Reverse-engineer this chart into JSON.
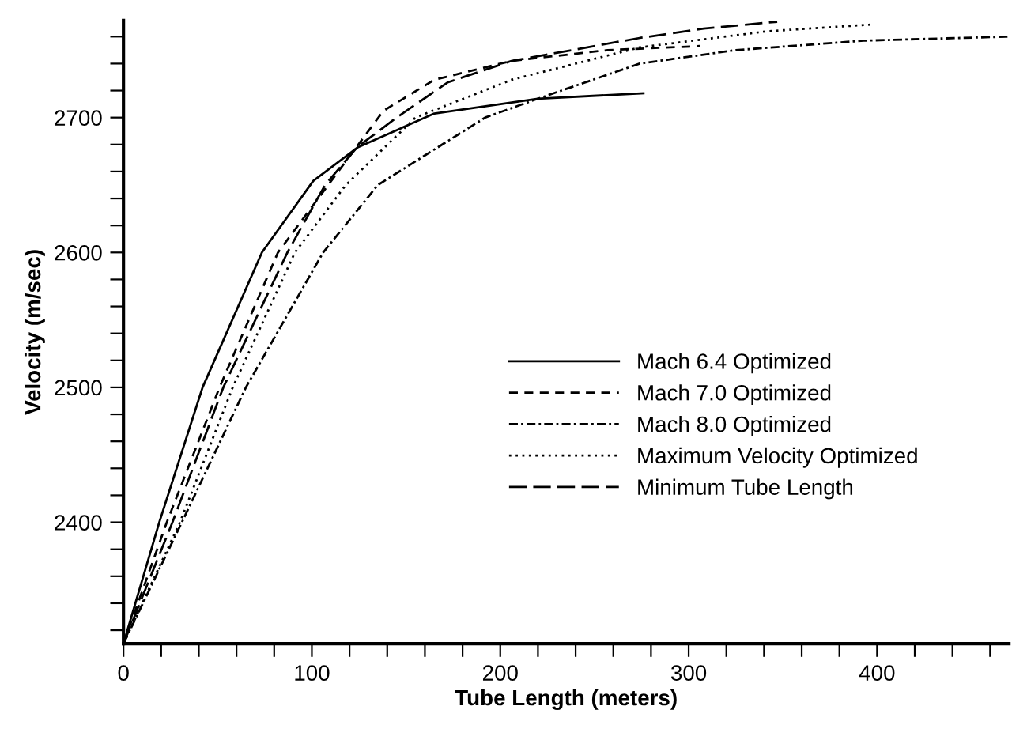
{
  "chart_data": {
    "type": "line",
    "xlabel": "Tube Length (meters)",
    "ylabel": "Velocity (m/sec)",
    "xlim": [
      0,
      470
    ],
    "ylim": [
      2310,
      2772
    ],
    "xticks": [
      0,
      {
        "value": 20,
        "label": null
      },
      {
        "value": 40,
        "label": null
      },
      {
        "value": 60,
        "label": null
      },
      {
        "value": 80,
        "label": null
      },
      100,
      {
        "value": 120,
        "label": null
      },
      {
        "value": 140,
        "label": null
      },
      {
        "value": 160,
        "label": null
      },
      {
        "value": 180,
        "label": null
      },
      200,
      {
        "value": 220,
        "label": null
      },
      {
        "value": 240,
        "label": null
      },
      {
        "value": 260,
        "label": null
      },
      {
        "value": 280,
        "label": null
      },
      300,
      {
        "value": 320,
        "label": null
      },
      {
        "value": 340,
        "label": null
      },
      {
        "value": 360,
        "label": null
      },
      {
        "value": 380,
        "label": null
      },
      400,
      {
        "value": 420,
        "label": null
      },
      {
        "value": 440,
        "label": null
      },
      {
        "value": 460,
        "label": null
      }
    ],
    "yticks": [
      {
        "value": 2320,
        "label": null
      },
      {
        "value": 2340,
        "label": null
      },
      {
        "value": 2360,
        "label": null
      },
      {
        "value": 2380,
        "label": null
      },
      2400,
      {
        "value": 2420,
        "label": null
      },
      {
        "value": 2440,
        "label": null
      },
      {
        "value": 2460,
        "label": null
      },
      {
        "value": 2480,
        "label": null
      },
      2500,
      {
        "value": 2520,
        "label": null
      },
      {
        "value": 2540,
        "label": null
      },
      {
        "value": 2560,
        "label": null
      },
      {
        "value": 2580,
        "label": null
      },
      2600,
      {
        "value": 2620,
        "label": null
      },
      {
        "value": 2640,
        "label": null
      },
      {
        "value": 2660,
        "label": null
      },
      {
        "value": 2680,
        "label": null
      },
      2700,
      {
        "value": 2720,
        "label": null
      },
      {
        "value": 2740,
        "label": null
      },
      {
        "value": 2760,
        "label": null
      }
    ],
    "grid": false,
    "legend": "bottom right",
    "marker": "none",
    "series": [
      {
        "name": "Mach 6.4 Optimized",
        "color": "#000000",
        "line_style": "solid",
        "x": [
          0,
          19,
          42,
          73.5,
          100.7,
          124.5,
          165,
          220,
          276
        ],
        "values": [
          2310,
          2400,
          2500,
          2600,
          2653,
          2678,
          2703,
          2714,
          2718
        ]
      },
      {
        "name": "Mach 7.0 Optimized",
        "color": "#000000",
        "line_style": "dashed",
        "x": [
          0,
          23,
          51,
          82,
          138,
          165,
          206,
          257,
          306
        ],
        "values": [
          2310,
          2400,
          2500,
          2600,
          2705,
          2728,
          2742,
          2750,
          2753
        ]
      },
      {
        "name": "Mach 8.0 Optimized",
        "color": "#000000",
        "line_style": "dashdot",
        "x": [
          0,
          31,
          65,
          106,
          135,
          192,
          220,
          274,
          325,
          393,
          470
        ],
        "values": [
          2310,
          2400,
          2500,
          2600,
          2650,
          2700,
          2714,
          2740,
          2750,
          2757,
          2760
        ]
      },
      {
        "name": "Maximum Velocity Optimized",
        "color": "#000000",
        "line_style": "dotted",
        "x": [
          0,
          30,
          58,
          91,
          118,
          155,
          206,
          274,
          342,
          398
        ],
        "values": [
          2310,
          2400,
          2500,
          2600,
          2650,
          2700,
          2728,
          2752,
          2764,
          2769
        ]
      },
      {
        "name": "Minimum Tube Length",
        "color": "#000000",
        "line_style": "longdash",
        "x": [
          0,
          26,
          53,
          87,
          107,
          124,
          145,
          172,
          206,
          274,
          308,
          347
        ],
        "values": [
          2310,
          2400,
          2500,
          2600,
          2650,
          2678,
          2700,
          2726,
          2742,
          2759,
          2766,
          2771
        ]
      }
    ]
  }
}
